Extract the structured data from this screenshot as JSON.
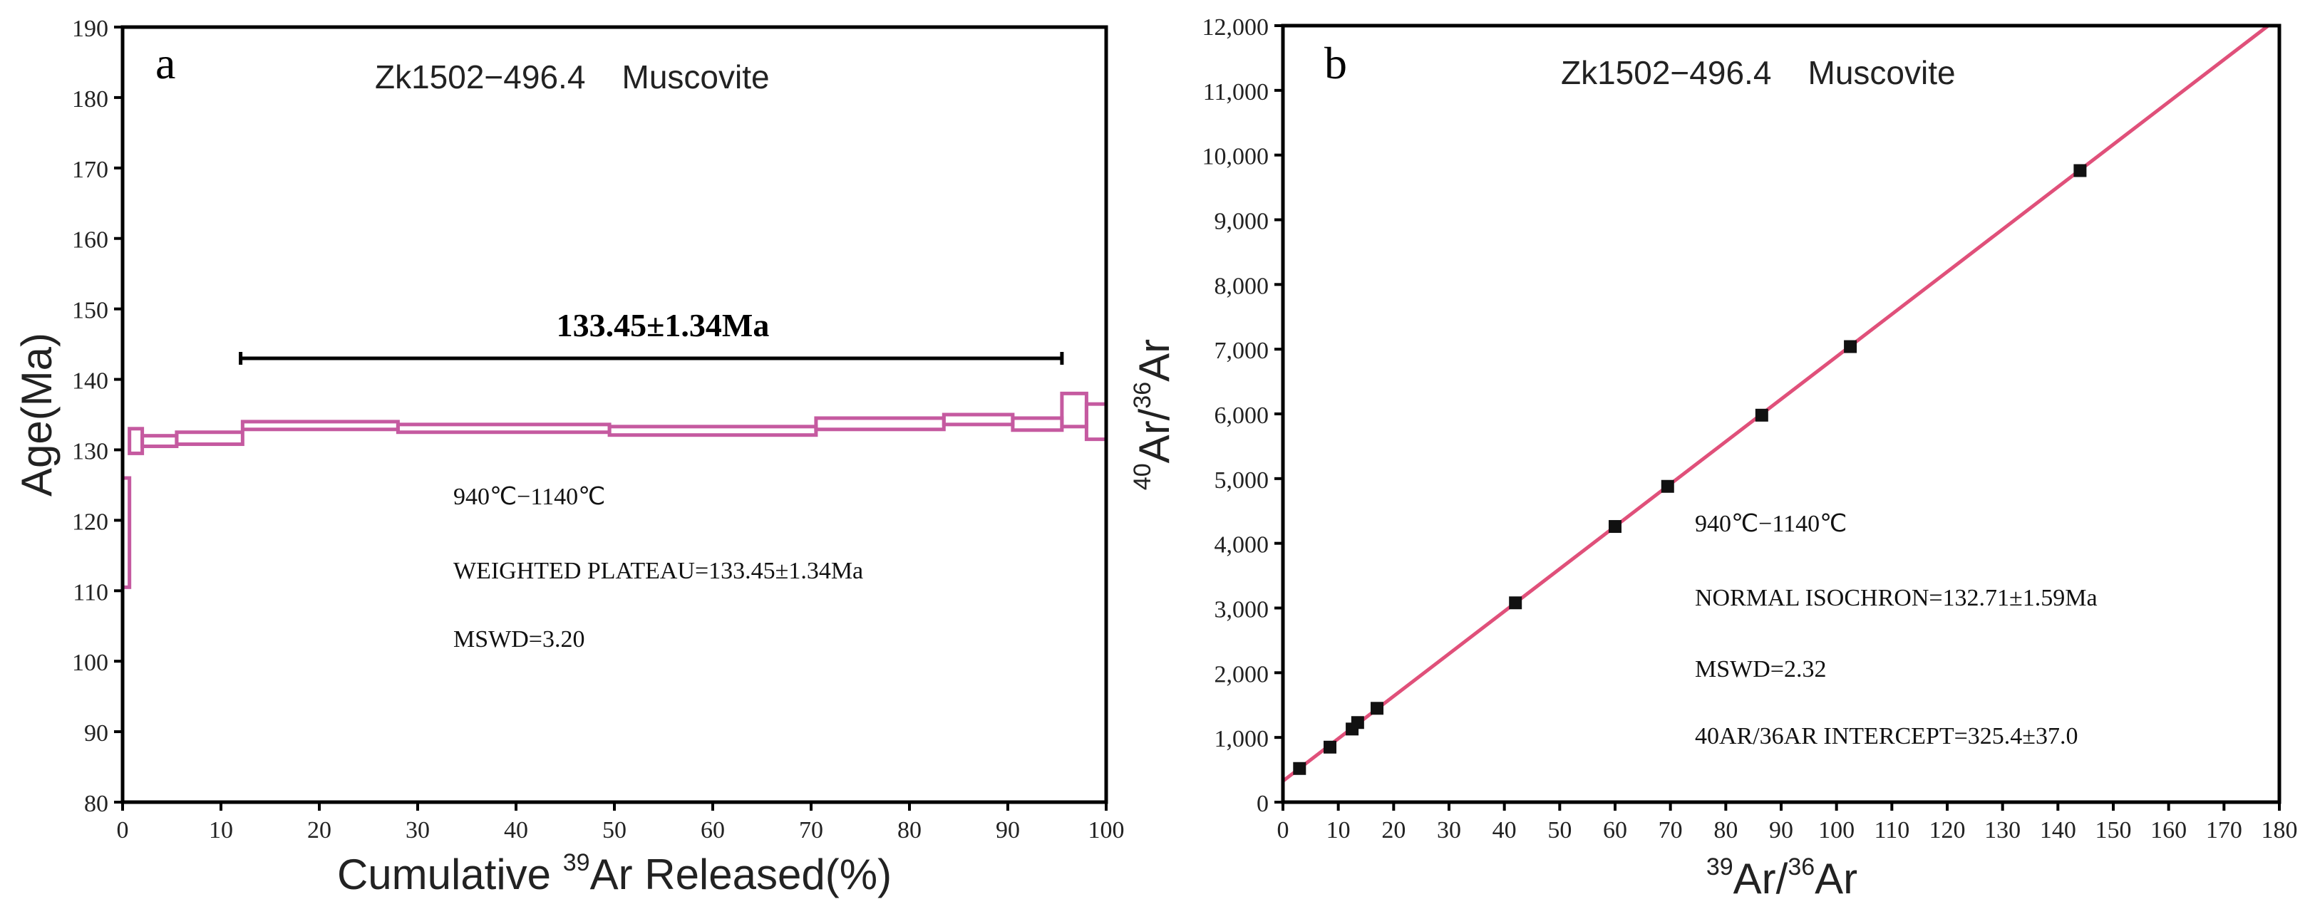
{
  "chart_data": [
    {
      "panel_label": "a",
      "type": "line",
      "subtype": "age-spectrum",
      "title": "Zk1502−496.4    Muscovite",
      "xlabel_prefix": "Cumulative ",
      "xlabel_sup": "39",
      "xlabel_suffix": "Ar Released(%)",
      "ylabel": "Age(Ma)",
      "xlim": [
        0,
        100
      ],
      "ylim": [
        80,
        190
      ],
      "xticks": [
        "0",
        "10",
        "20",
        "30",
        "40",
        "50",
        "60",
        "70",
        "80",
        "90",
        "100"
      ],
      "yticks": [
        "80",
        "90",
        "100",
        "110",
        "120",
        "130",
        "140",
        "150",
        "160",
        "170",
        "180",
        "190"
      ],
      "plateau_label": "133.45±1.34Ma",
      "plateau_range": [
        12,
        95.5
      ],
      "annotations": [
        "940℃−1140℃",
        "WEIGHTED PLATEAU=133.45±1.34Ma",
        "MSWD=3.20"
      ],
      "steps": [
        {
          "x0": 0,
          "x1": 0.7,
          "top": 126,
          "bottom": 110.5
        },
        {
          "x0": 0.7,
          "x1": 2,
          "top": 133,
          "bottom": 129.5
        },
        {
          "x0": 2,
          "x1": 5.5,
          "top": 132,
          "bottom": 130.5
        },
        {
          "x0": 5.5,
          "x1": 12.2,
          "top": 132.5,
          "bottom": 130.8
        },
        {
          "x0": 12.2,
          "x1": 28,
          "top": 134,
          "bottom": 132.9
        },
        {
          "x0": 28,
          "x1": 49.5,
          "top": 133.6,
          "bottom": 132.5
        },
        {
          "x0": 49.5,
          "x1": 70.5,
          "top": 133.3,
          "bottom": 132.1
        },
        {
          "x0": 70.5,
          "x1": 83.5,
          "top": 134.5,
          "bottom": 132.9
        },
        {
          "x0": 83.5,
          "x1": 90.5,
          "top": 135,
          "bottom": 133.6
        },
        {
          "x0": 90.5,
          "x1": 95.5,
          "top": 134.5,
          "bottom": 132.8
        },
        {
          "x0": 95.5,
          "x1": 98,
          "top": 138,
          "bottom": 133.3
        },
        {
          "x0": 98,
          "x1": 100,
          "top": 136.5,
          "bottom": 131.5
        }
      ],
      "step_color": "#c55aa0"
    },
    {
      "panel_label": "b",
      "type": "scatter",
      "subtype": "normal-isochron",
      "title": "Zk1502−496.4    Muscovite",
      "xlabel_sup1": "39",
      "xlabel_mid": "Ar/",
      "xlabel_sup2": "36",
      "xlabel_end": "Ar",
      "ylabel_sup1": "40",
      "ylabel_mid": "Ar/",
      "ylabel_sup2": "36",
      "ylabel_end": "Ar",
      "xlim": [
        0,
        180
      ],
      "ylim": [
        0,
        12000
      ],
      "xticks": [
        "0",
        "10",
        "20",
        "30",
        "40",
        "50",
        "60",
        "70",
        "80",
        "90",
        "100",
        "110",
        "120",
        "130",
        "140",
        "150",
        "160",
        "170",
        "180"
      ],
      "yticks": [
        "0",
        "1,000",
        "2,000",
        "3,000",
        "4,000",
        "5,000",
        "6,000",
        "7,000",
        "8,000",
        "9,000",
        "10,000",
        "11,000",
        "12,000"
      ],
      "points": [
        {
          "x": 3,
          "y": 520
        },
        {
          "x": 8.5,
          "y": 850
        },
        {
          "x": 12.5,
          "y": 1130
        },
        {
          "x": 13.5,
          "y": 1230
        },
        {
          "x": 17,
          "y": 1450
        },
        {
          "x": 42,
          "y": 3080
        },
        {
          "x": 60,
          "y": 4260
        },
        {
          "x": 69.5,
          "y": 4880
        },
        {
          "x": 86.5,
          "y": 5980
        },
        {
          "x": 102.5,
          "y": 7040
        },
        {
          "x": 144,
          "y": 9760
        }
      ],
      "fit_line": {
        "x0": 0,
        "y0": 325.4,
        "x1": 178,
        "y1": 12000
      },
      "line_color": "#e0507a",
      "annotations": [
        "940℃−1140℃",
        "NORMAL ISOCHRON=132.71±1.59Ma",
        "MSWD=2.32",
        "40AR/36AR INTERCEPT=325.4±37.0"
      ]
    }
  ]
}
